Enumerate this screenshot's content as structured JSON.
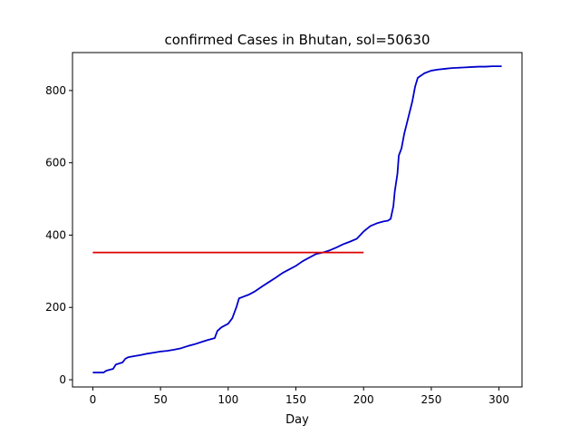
{
  "chart_data": {
    "type": "line",
    "title": "confirmed Cases in Bhutan, sol=50630",
    "xlabel": "Day",
    "ylabel": "",
    "xlim": [
      -15,
      317
    ],
    "ylim": [
      -20,
      905
    ],
    "xticks": [
      0,
      50,
      100,
      150,
      200,
      250,
      300
    ],
    "yticks": [
      0,
      200,
      400,
      600,
      800
    ],
    "grid": false,
    "legend": "none",
    "series": [
      {
        "color": "#0000cc",
        "x": [
          0,
          8,
          10,
          15,
          17,
          22,
          24,
          26,
          30,
          35,
          40,
          45,
          50,
          55,
          60,
          65,
          70,
          75,
          80,
          85,
          90,
          92,
          95,
          100,
          103,
          106,
          108,
          110,
          115,
          120,
          125,
          130,
          135,
          140,
          145,
          150,
          155,
          160,
          165,
          170,
          175,
          180,
          185,
          190,
          195,
          200,
          205,
          210,
          215,
          218,
          220,
          222,
          223,
          225,
          226,
          228,
          230,
          232,
          234,
          236,
          238,
          240,
          245,
          250,
          255,
          260,
          265,
          270,
          275,
          280,
          285,
          290,
          295,
          300,
          302
        ],
        "values": [
          20,
          20,
          25,
          30,
          42,
          48,
          58,
          62,
          65,
          68,
          72,
          75,
          78,
          80,
          83,
          87,
          93,
          98,
          104,
          110,
          115,
          135,
          145,
          155,
          170,
          200,
          225,
          228,
          235,
          245,
          258,
          270,
          282,
          295,
          305,
          315,
          328,
          338,
          348,
          352,
          358,
          366,
          375,
          382,
          390,
          410,
          425,
          433,
          438,
          440,
          445,
          480,
          520,
          570,
          620,
          640,
          680,
          710,
          740,
          770,
          810,
          835,
          848,
          855,
          858,
          860,
          862,
          863,
          864,
          865,
          866,
          866,
          867,
          867,
          867
        ]
      },
      {
        "color": "#dd0000",
        "x": [
          0,
          200
        ],
        "values": [
          352,
          352
        ]
      }
    ]
  }
}
